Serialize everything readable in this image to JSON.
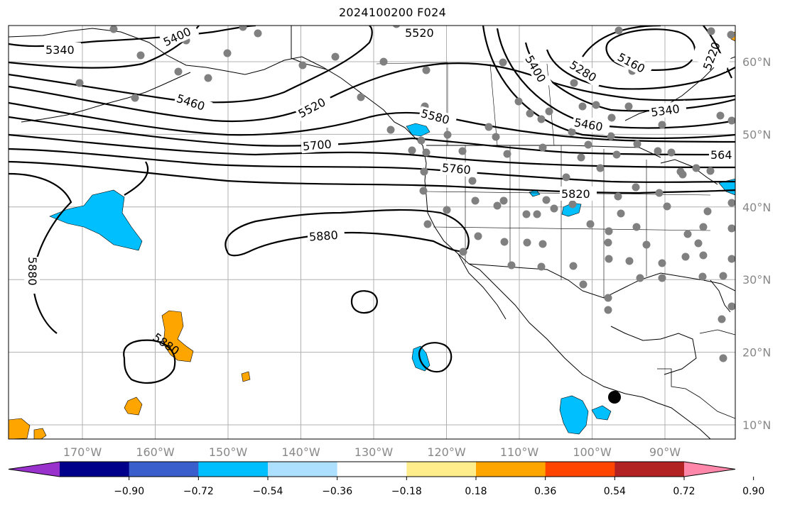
{
  "title": "2024100200 F024",
  "map": {
    "lon_ticks": [
      {
        "lon": -170,
        "label": "170°W"
      },
      {
        "lon": -160,
        "label": "160°W"
      },
      {
        "lon": -150,
        "label": "150°W"
      },
      {
        "lon": -140,
        "label": "140°W"
      },
      {
        "lon": -130,
        "label": "130°W"
      },
      {
        "lon": -120,
        "label": "120°W"
      },
      {
        "lon": -110,
        "label": "110°W"
      },
      {
        "lon": -100,
        "label": "100°W"
      },
      {
        "lon": -90,
        "label": "90°W"
      }
    ],
    "lat_ticks": [
      {
        "lat": 60,
        "label": "60°N"
      },
      {
        "lat": 50,
        "label": "50°N"
      },
      {
        "lat": 40,
        "label": "40°N"
      },
      {
        "lat": 30,
        "label": "30°N"
      },
      {
        "lat": 20,
        "label": "20°N"
      },
      {
        "lat": 10,
        "label": "10°N"
      }
    ],
    "contour_labels": [
      "5340",
      "5400",
      "5460",
      "5520",
      "5580",
      "5700",
      "5760",
      "5820",
      "5880",
      "5280",
      "5160",
      "5220",
      "564"
    ],
    "marker_color": "#808080"
  },
  "colorbar": {
    "colors": [
      "#9932CC",
      "#00008B",
      "#3A5FCD",
      "#00BFFF",
      "#ADDFFF",
      "#FFFFFF",
      "#FFEC8B",
      "#FFA500",
      "#FF4500",
      "#B22222",
      "#FF88AA"
    ],
    "tick_labels": [
      "−0.90",
      "−0.72",
      "−0.54",
      "−0.36",
      "−0.18",
      "0.18",
      "0.36",
      "0.54",
      "0.72",
      "0.90"
    ]
  }
}
